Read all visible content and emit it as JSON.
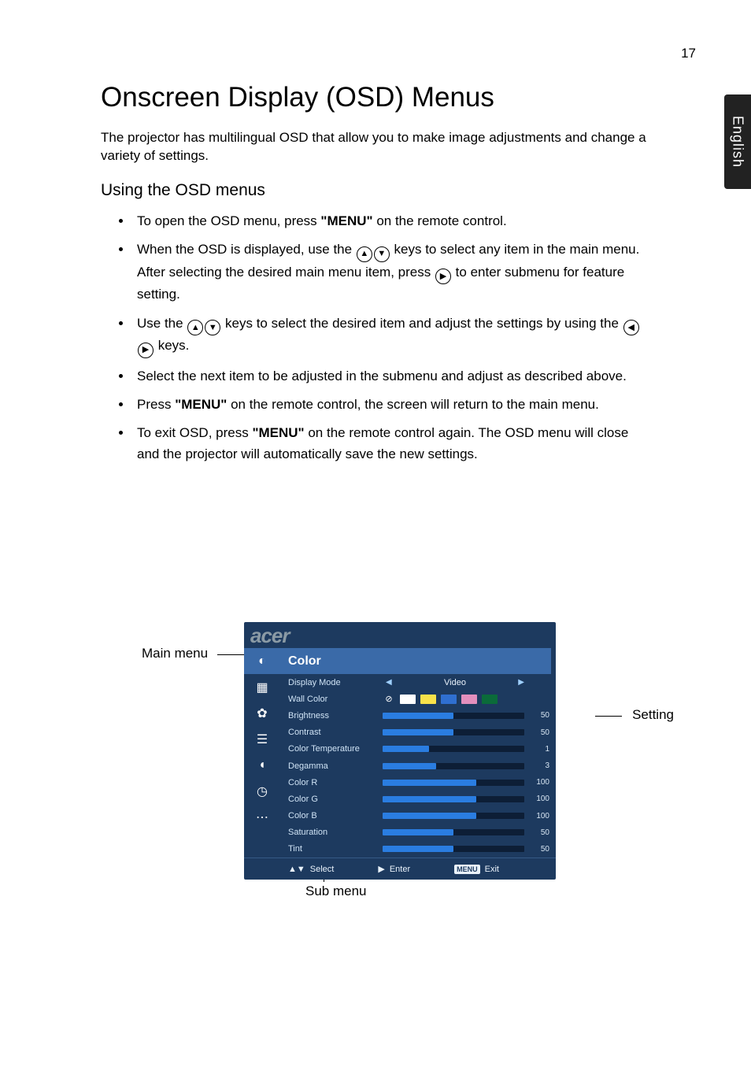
{
  "page_number": "17",
  "side_tab": "English",
  "h1": "Onscreen Display (OSD) Menus",
  "intro": "The projector has multilingual OSD that allow you to make image adjustments and change a variety of settings.",
  "h2": "Using the OSD menus",
  "bullets": {
    "b1_pre": "To open the OSD menu, press ",
    "b1_bold": "\"MENU\"",
    "b1_post": " on the remote control.",
    "b2_a": "When the OSD is displayed, use the  ",
    "b2_b": "  keys to select any item in the main menu. After selecting the desired main menu item, press ",
    "b2_c": " to enter submenu for feature setting.",
    "b3_a": "Use the  ",
    "b3_b": "  keys to select the desired item and adjust the settings by using the  ",
    "b3_c": " keys.",
    "b4": "Select the next item to be adjusted in the submenu and adjust as described above.",
    "b5_pre": "Press ",
    "b5_bold": "\"MENU\"",
    "b5_post": " on the remote control, the screen will return to the main menu.",
    "b6_pre": "To exit OSD, press ",
    "b6_bold": "\"MENU\"",
    "b6_post": " on the remote control again. The OSD menu will close and the projector will automatically save the new settings."
  },
  "labels": {
    "main_menu": "Main menu",
    "setting": "Setting",
    "sub_menu": "Sub menu"
  },
  "osd": {
    "logo": "acer",
    "title": "Color",
    "side_icons": [
      "palette-icon",
      "picture-icon",
      "gear-icon",
      "management-icon",
      "audio-icon",
      "timer-icon",
      "language-icon"
    ],
    "side_glyphs": [
      "◐",
      "▦",
      "✿",
      "☰",
      "◖",
      "◷",
      "⋯"
    ],
    "rows": [
      {
        "label": "Display Mode",
        "type": "mode",
        "value": "Video"
      },
      {
        "label": "Wall Color",
        "type": "swatches",
        "colors": [
          "#ffffff",
          "#f8e24a",
          "#2f6fd0",
          "#e38fbd",
          "#0b6b3a"
        ]
      },
      {
        "label": "Brightness",
        "type": "slider",
        "value": 50,
        "pct": 50
      },
      {
        "label": "Contrast",
        "type": "slider",
        "value": 50,
        "pct": 50
      },
      {
        "label": "Color Temperature",
        "type": "slider",
        "value": 1,
        "pct": 33
      },
      {
        "label": "Degamma",
        "type": "slider",
        "value": 3,
        "pct": 38
      },
      {
        "label": "Color R",
        "type": "slider",
        "value": 100,
        "pct": 66
      },
      {
        "label": "Color G",
        "type": "slider",
        "value": 100,
        "pct": 66
      },
      {
        "label": "Color B",
        "type": "slider",
        "value": 100,
        "pct": 66
      },
      {
        "label": "Saturation",
        "type": "slider",
        "value": 50,
        "pct": 50
      },
      {
        "label": "Tint",
        "type": "slider",
        "value": 50,
        "pct": 50
      }
    ],
    "footer": {
      "select": "Select",
      "enter": "Enter",
      "menu_key": "MENU",
      "exit": "Exit"
    },
    "colors": {
      "panel": "#1d3a5f",
      "header": "#3a6aa8",
      "slider_track": "#2a7de1",
      "slider_bg": "#0d1e36"
    }
  }
}
